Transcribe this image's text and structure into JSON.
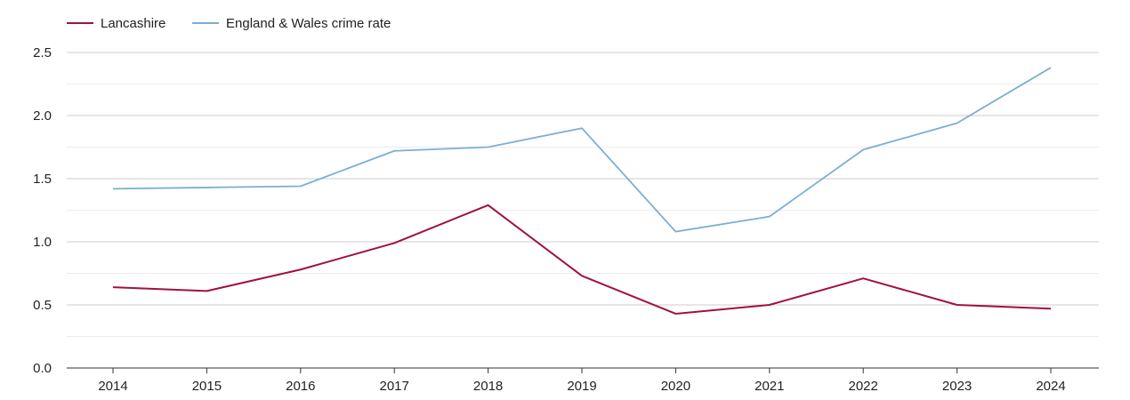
{
  "chart_data": {
    "type": "line",
    "title": "",
    "xlabel": "",
    "ylabel": "",
    "x": [
      "2014",
      "2015",
      "2016",
      "2017",
      "2018",
      "2019",
      "2020",
      "2021",
      "2022",
      "2023",
      "2024"
    ],
    "ylim": [
      0,
      2.5
    ],
    "yticks": [
      "0.0",
      "0.5",
      "1.0",
      "1.5",
      "2.0",
      "2.5"
    ],
    "ytick_values": [
      0,
      0.5,
      1.0,
      1.5,
      2.0,
      2.5
    ],
    "minor_grid_values": [
      0.25,
      0.75,
      1.25,
      1.75,
      2.25
    ],
    "grid": true,
    "legend_position": "top-left",
    "series": [
      {
        "name": "Lancashire",
        "color": "#a0123c",
        "values": [
          0.64,
          0.61,
          0.78,
          0.99,
          1.29,
          0.73,
          0.43,
          0.5,
          0.71,
          0.5,
          0.47
        ]
      },
      {
        "name": "England & Wales crime rate",
        "color": "#7bafd1",
        "values": [
          1.42,
          1.43,
          1.44,
          1.72,
          1.75,
          1.9,
          1.08,
          1.2,
          1.73,
          1.94,
          2.38
        ]
      }
    ]
  }
}
